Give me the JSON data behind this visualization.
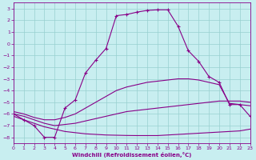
{
  "bg_color": "#c8eef0",
  "grid_color": "#98d0d0",
  "line_color": "#880088",
  "xlim": [
    0,
    23
  ],
  "ylim": [
    -8.5,
    3.5
  ],
  "yticks": [
    3,
    2,
    1,
    0,
    -1,
    -2,
    -3,
    -4,
    -5,
    -6,
    -7,
    -8
  ],
  "xticks": [
    0,
    1,
    2,
    3,
    4,
    5,
    6,
    7,
    8,
    9,
    10,
    11,
    12,
    13,
    14,
    15,
    16,
    17,
    18,
    19,
    20,
    21,
    22,
    23
  ],
  "xlabel": "Windchill (Refroidissement éolien,°C)",
  "lines": [
    {
      "x": [
        0,
        1,
        2,
        3,
        4,
        5,
        6,
        7,
        8,
        9,
        10,
        11,
        12,
        13,
        14,
        15,
        16,
        17,
        18,
        19,
        20,
        21,
        22,
        23
      ],
      "y": [
        -6.2,
        -6.5,
        -6.8,
        -7.1,
        -7.3,
        -7.5,
        -7.6,
        -7.7,
        -7.75,
        -7.8,
        -7.82,
        -7.84,
        -7.85,
        -7.85,
        -7.85,
        -7.8,
        -7.75,
        -7.7,
        -7.65,
        -7.6,
        -7.55,
        -7.5,
        -7.45,
        -7.3
      ],
      "has_markers": false,
      "linewidth": 0.8,
      "linestyle": "-"
    },
    {
      "x": [
        0,
        1,
        2,
        3,
        4,
        5,
        6,
        7,
        8,
        9,
        10,
        11,
        12,
        13,
        14,
        15,
        16,
        17,
        18,
        19,
        20,
        21,
        22,
        23
      ],
      "y": [
        -6.0,
        -6.2,
        -6.5,
        -6.8,
        -7.0,
        -6.9,
        -6.8,
        -6.6,
        -6.4,
        -6.2,
        -6.0,
        -5.8,
        -5.7,
        -5.6,
        -5.5,
        -5.4,
        -5.3,
        -5.2,
        -5.1,
        -5.0,
        -4.9,
        -4.9,
        -4.9,
        -5.0
      ],
      "has_markers": false,
      "linewidth": 0.8,
      "linestyle": "-"
    },
    {
      "x": [
        0,
        1,
        2,
        3,
        4,
        5,
        6,
        7,
        8,
        9,
        10,
        11,
        12,
        13,
        14,
        15,
        16,
        17,
        18,
        19,
        20,
        21,
        22,
        23
      ],
      "y": [
        -5.8,
        -6.0,
        -6.3,
        -6.5,
        -6.5,
        -6.3,
        -6.0,
        -5.5,
        -5.0,
        -4.5,
        -4.0,
        -3.7,
        -3.5,
        -3.3,
        -3.2,
        -3.1,
        -3.0,
        -3.0,
        -3.1,
        -3.3,
        -3.5,
        -5.1,
        -5.2,
        -5.3
      ],
      "has_markers": false,
      "linewidth": 0.8,
      "linestyle": "-"
    },
    {
      "x": [
        0,
        1,
        2,
        3,
        4,
        5,
        6,
        7,
        8,
        9,
        10,
        11,
        12,
        13,
        14,
        15,
        16,
        17,
        18,
        19,
        20,
        21,
        22,
        23
      ],
      "y": [
        -6.0,
        -6.5,
        -7.0,
        -8.0,
        -8.0,
        -5.5,
        -4.8,
        -2.5,
        -1.4,
        -0.4,
        2.4,
        2.5,
        2.7,
        2.85,
        2.9,
        2.9,
        1.5,
        -0.6,
        -1.5,
        -2.8,
        -3.3,
        -5.2,
        -5.2,
        -6.2
      ],
      "has_markers": true,
      "linewidth": 0.8,
      "linestyle": "-"
    }
  ]
}
